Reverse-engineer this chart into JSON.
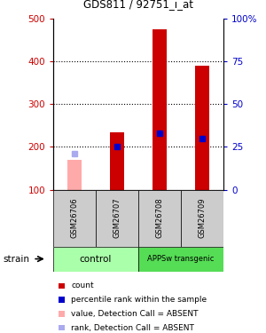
{
  "title": "GDS811 / 92751_i_at",
  "samples": [
    "GSM26706",
    "GSM26707",
    "GSM26708",
    "GSM26709"
  ],
  "ylim_left": [
    100,
    500
  ],
  "ylim_right": [
    0,
    100
  ],
  "yticks_left": [
    100,
    200,
    300,
    400,
    500
  ],
  "yticks_right": [
    0,
    25,
    50,
    75,
    100
  ],
  "ytick_labels_right": [
    "0",
    "25",
    "50",
    "75",
    "100%"
  ],
  "bar_bottom": 100,
  "bars": [
    {
      "value": 170,
      "rank": 185,
      "absent": true
    },
    {
      "value": 235,
      "rank": 200,
      "absent": false
    },
    {
      "value": 475,
      "rank": 232,
      "absent": false
    },
    {
      "value": 390,
      "rank": 220,
      "absent": false
    }
  ],
  "bar_color_present": "#cc0000",
  "bar_color_absent": "#ffaaaa",
  "rank_color_present": "#0000cc",
  "rank_color_absent": "#aaaaee",
  "dotted_grid_values": [
    200,
    300,
    400
  ],
  "label_color_left": "#cc0000",
  "label_color_right": "#0000cc",
  "group_ctrl_color": "#aaffaa",
  "group_app_color": "#55dd55",
  "sample_box_color": "#cccccc",
  "legend_items": [
    {
      "label": "count",
      "color": "#cc0000"
    },
    {
      "label": "percentile rank within the sample",
      "color": "#0000cc"
    },
    {
      "label": "value, Detection Call = ABSENT",
      "color": "#ffaaaa"
    },
    {
      "label": "rank, Detection Call = ABSENT",
      "color": "#aaaaee"
    }
  ]
}
